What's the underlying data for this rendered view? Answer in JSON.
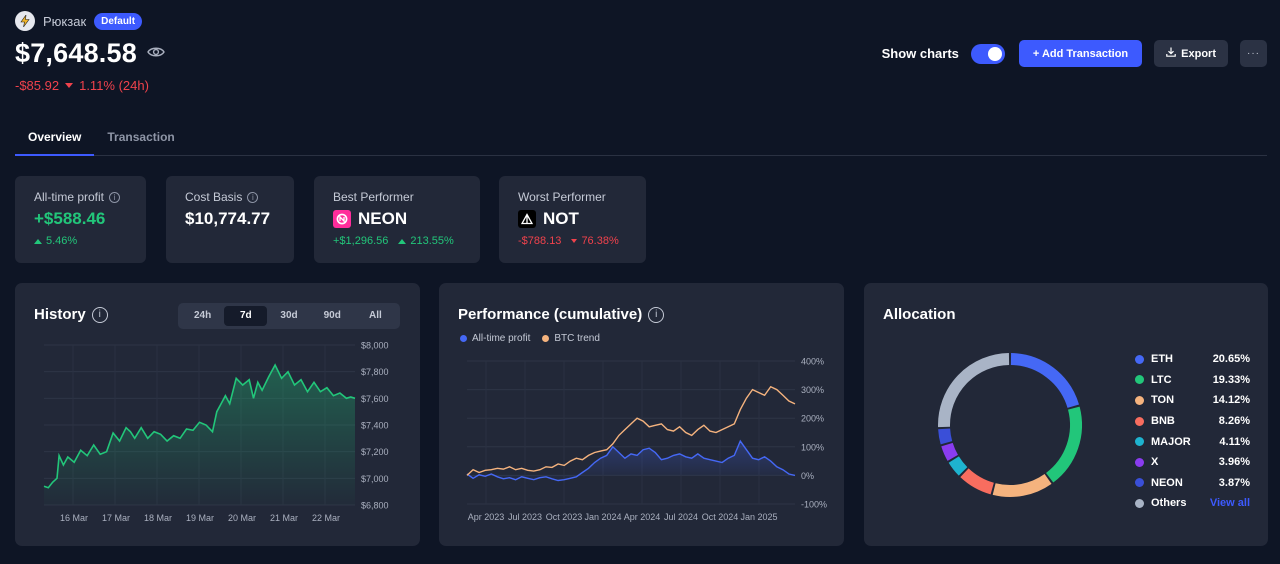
{
  "header": {
    "wallet_name": "Рюкзак",
    "wallet_badge": "Default",
    "balance": "$7,648.58",
    "change_amount": "-$85.92",
    "change_pct": "1.11% (24h)",
    "show_charts_label": "Show charts",
    "show_charts_on": true,
    "add_transaction_label": "+ Add Transaction",
    "export_label": "Export",
    "more_label": "···"
  },
  "tabs": [
    {
      "label": "Overview",
      "active": true
    },
    {
      "label": "Transaction",
      "active": false
    }
  ],
  "stats": {
    "all_time_profit": {
      "title": "All-time profit",
      "value": "+$588.46",
      "pct": "5.46%"
    },
    "cost_basis": {
      "title": "Cost Basis",
      "value": "$10,774.77"
    },
    "best": {
      "title": "Best Performer",
      "coin": "NEON",
      "amount": "+$1,296.56",
      "pct": "213.55%"
    },
    "worst": {
      "title": "Worst Performer",
      "coin": "NOT",
      "amount": "-$788.13",
      "pct": "76.38%"
    }
  },
  "history": {
    "title": "History",
    "ranges": [
      "24h",
      "7d",
      "30d",
      "90d",
      "All"
    ],
    "active_range": "7d"
  },
  "performance": {
    "title": "Performance (cumulative)",
    "legend": [
      "All-time profit",
      "BTC trend"
    ]
  },
  "allocation": {
    "title": "Allocation",
    "items": [
      {
        "name": "ETH",
        "pct": "20.65%",
        "value": 20.65,
        "color": "#4568f5"
      },
      {
        "name": "LTC",
        "pct": "19.33%",
        "value": 19.33,
        "color": "#22c67a"
      },
      {
        "name": "TON",
        "pct": "14.12%",
        "value": 14.12,
        "color": "#f5b37e"
      },
      {
        "name": "BNB",
        "pct": "8.26%",
        "value": 8.26,
        "color": "#f86d5f"
      },
      {
        "name": "MAJOR",
        "pct": "4.11%",
        "value": 4.11,
        "color": "#1eb3cf"
      },
      {
        "name": "X",
        "pct": "3.96%",
        "value": 3.96,
        "color": "#8a3cf0"
      },
      {
        "name": "NEON",
        "pct": "3.87%",
        "value": 3.87,
        "color": "#3a4fd8"
      },
      {
        "name": "Others",
        "pct": "View all",
        "value": 25.7,
        "color": "#a9b4c6"
      }
    ]
  },
  "chart_data": [
    {
      "type": "area",
      "title": "History",
      "xlabel": "",
      "ylabel": "",
      "x_ticks": [
        "16 Mar",
        "17 Mar",
        "18 Mar",
        "19 Mar",
        "20 Mar",
        "21 Mar",
        "22 Mar"
      ],
      "y_ticks": [
        "$8,000",
        "$7,800",
        "$7,600",
        "$7,400",
        "$7,200",
        "$7,000",
        "$6,800"
      ],
      "ylim": [
        6800,
        8000
      ],
      "xlim": [
        0,
        7.2
      ],
      "grid": true,
      "series": [
        {
          "color": "#22c67a",
          "x": [
            0.0,
            0.1,
            0.2,
            0.3,
            0.35,
            0.45,
            0.55,
            0.7,
            0.85,
            1.0,
            1.15,
            1.3,
            1.45,
            1.6,
            1.75,
            1.9,
            2.0,
            2.1,
            2.25,
            2.4,
            2.55,
            2.7,
            2.85,
            3.0,
            3.15,
            3.3,
            3.45,
            3.6,
            3.75,
            3.9,
            4.0,
            4.1,
            4.2,
            4.3,
            4.45,
            4.6,
            4.75,
            4.85,
            4.95,
            5.05,
            5.2,
            5.35,
            5.5,
            5.65,
            5.8,
            5.95,
            6.1,
            6.25,
            6.4,
            6.55,
            6.7,
            6.85,
            7.0,
            7.1,
            7.2
          ],
          "values": [
            6940,
            6930,
            6970,
            7000,
            7170,
            7100,
            7160,
            7120,
            7210,
            7170,
            7250,
            7180,
            7200,
            7340,
            7280,
            7380,
            7350,
            7300,
            7380,
            7300,
            7350,
            7330,
            7280,
            7320,
            7300,
            7370,
            7360,
            7420,
            7400,
            7350,
            7500,
            7560,
            7620,
            7560,
            7750,
            7700,
            7740,
            7600,
            7720,
            7660,
            7760,
            7850,
            7750,
            7800,
            7700,
            7740,
            7650,
            7720,
            7650,
            7680,
            7620,
            7640,
            7600,
            7610,
            7600
          ]
        }
      ]
    },
    {
      "type": "line",
      "title": "Performance (cumulative)",
      "xlabel": "",
      "ylabel": "",
      "x_ticks": [
        "Apr 2023",
        "Jul 2023",
        "Oct 2023",
        "Jan 2024",
        "Apr 2024",
        "Jul 2024",
        "Oct 2024",
        "Jan 2025"
      ],
      "y_ticks": [
        "400%",
        "300%",
        "200%",
        "100%",
        "0%",
        "-100%"
      ],
      "ylim": [
        -100,
        400
      ],
      "x_start": "2023-03",
      "grid": true,
      "legend": "top-left",
      "series": [
        {
          "name": "All-time profit",
          "color": "#4568f5",
          "values": [
            5,
            -10,
            2,
            -3,
            5,
            -5,
            -12,
            -8,
            -15,
            -5,
            -10,
            -15,
            -8,
            -5,
            -12,
            -18,
            -15,
            -10,
            -5,
            10,
            25,
            45,
            60,
            70,
            100,
            80,
            60,
            75,
            70,
            90,
            95,
            80,
            55,
            60,
            70,
            75,
            65,
            60,
            75,
            60,
            55,
            50,
            45,
            60,
            70,
            120,
            90,
            60,
            55,
            65,
            50,
            30,
            20,
            5,
            0
          ]
        },
        {
          "name": "BTC trend",
          "color": "#f5b37e",
          "values": [
            0,
            20,
            10,
            18,
            20,
            25,
            22,
            30,
            20,
            25,
            18,
            15,
            20,
            30,
            28,
            40,
            35,
            50,
            60,
            55,
            70,
            80,
            85,
            90,
            110,
            140,
            160,
            180,
            200,
            190,
            170,
            175,
            180,
            160,
            155,
            170,
            150,
            140,
            160,
            175,
            155,
            150,
            160,
            170,
            180,
            230,
            270,
            300,
            290,
            280,
            310,
            300,
            280,
            260,
            250
          ]
        }
      ]
    },
    {
      "type": "pie",
      "title": "Allocation",
      "categories": [
        "ETH",
        "LTC",
        "TON",
        "BNB",
        "MAJOR",
        "X",
        "NEON",
        "Others"
      ],
      "values": [
        20.65,
        19.33,
        14.12,
        8.26,
        4.11,
        3.96,
        3.87,
        25.7
      ],
      "legend": "right"
    }
  ]
}
